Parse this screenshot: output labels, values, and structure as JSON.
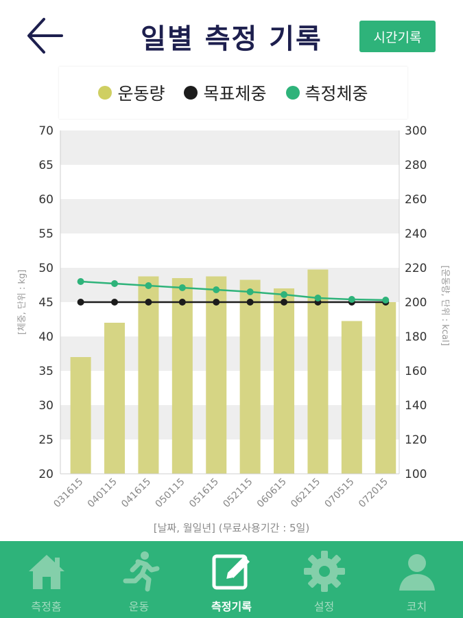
{
  "header": {
    "title": "일별 측정 기록",
    "time_button": "시간기록"
  },
  "colors": {
    "exercise": "#d6d584",
    "exercise_legend": "#cfcf62",
    "target": "#1c1c1c",
    "measured": "#2eb37a",
    "accent": "#2eb37a"
  },
  "chart_data": {
    "type": "bar",
    "categories": [
      "031615",
      "040115",
      "041615",
      "050115",
      "051615",
      "052115",
      "060615",
      "062115",
      "070515",
      "072015"
    ],
    "legend": [
      "운동량",
      "목표체중",
      "측정체중"
    ],
    "xlabel": "[날짜, 월일년] (무료사용기간 : 5일)",
    "ylabel_left": "[체중, 단위 : kg]",
    "ylabel_right": "[운동량, 단위 : kcal]",
    "ylim_left": [
      20,
      70
    ],
    "ylim_right": [
      100,
      300
    ],
    "yticks_left": [
      "20",
      "25",
      "30",
      "35",
      "40",
      "45",
      "50",
      "55",
      "60",
      "65",
      "70"
    ],
    "yticks_right": [
      "100",
      "120",
      "140",
      "160",
      "180",
      "200",
      "220",
      "240",
      "260",
      "280",
      "300"
    ],
    "series": [
      {
        "name": "운동량",
        "type": "bar",
        "axis": "right",
        "values": [
          168,
          188,
          215,
          214,
          215,
          213,
          208,
          219,
          189,
          200
        ]
      },
      {
        "name": "목표체중",
        "type": "line",
        "axis": "left",
        "values": [
          45,
          45,
          45,
          45,
          45,
          45,
          45,
          45,
          45,
          45
        ]
      },
      {
        "name": "측정체중",
        "type": "line",
        "axis": "left",
        "values": [
          48,
          47.7,
          47.4,
          47.1,
          46.8,
          46.5,
          46.1,
          45.6,
          45.4,
          45.3
        ]
      }
    ],
    "grid": "banded",
    "legend_position": "top"
  },
  "nav": {
    "items": [
      {
        "label": "측정홈",
        "icon": "home-icon"
      },
      {
        "label": "운동",
        "icon": "running-icon"
      },
      {
        "label": "측정기록",
        "icon": "edit-record-icon"
      },
      {
        "label": "설정",
        "icon": "gear-icon"
      },
      {
        "label": "코치",
        "icon": "person-icon"
      }
    ],
    "active_index": 2
  }
}
